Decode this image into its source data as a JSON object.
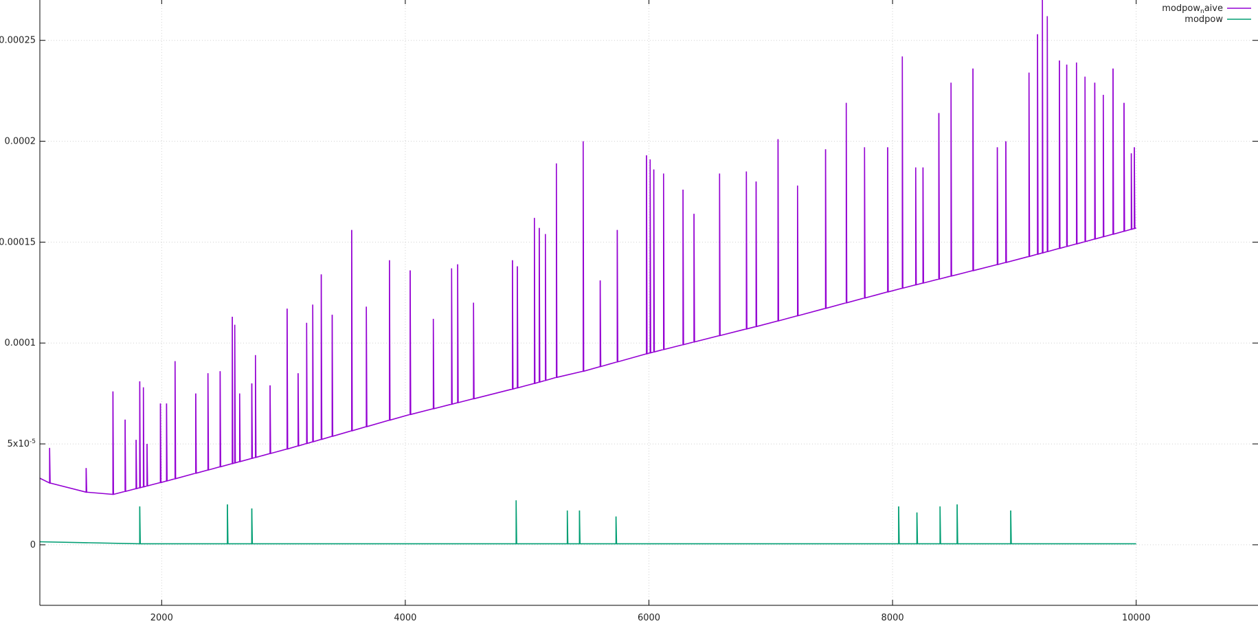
{
  "chart_data": {
    "type": "line",
    "title": "",
    "xlabel": "",
    "ylabel": "",
    "xlim": [
      1000,
      11000
    ],
    "ylim": [
      -3e-05,
      0.00027
    ],
    "grid": true,
    "legend_position": "top-right",
    "x_ticks": [
      2000,
      4000,
      6000,
      8000,
      10000
    ],
    "x_tick_labels": [
      "2000",
      "4000",
      "6000",
      "8000",
      "10000"
    ],
    "y_ticks": [
      0,
      5e-05,
      0.0001,
      0.00015,
      0.0002,
      0.00025
    ],
    "y_tick_labels": [
      "0",
      "5x10-5",
      "0.0001",
      "0.00015",
      "0.0002",
      "0.00025"
    ],
    "series": [
      {
        "name": "modpow_naive",
        "legend_label": "modpownaive",
        "color": "#9400d3",
        "baseline": [
          [
            1000,
            3.3e-05
          ],
          [
            1200,
            2.7e-05
          ],
          [
            1400,
            2.6e-05
          ],
          [
            1600,
            2.5e-05
          ],
          [
            2000,
            3.1e-05
          ],
          [
            3000,
            4.7e-05
          ],
          [
            4000,
            6.4e-05
          ],
          [
            5000,
            7.9e-05
          ],
          [
            5300,
            8.4e-05
          ],
          [
            5400,
            8.5e-05
          ],
          [
            6000,
            9.5e-05
          ],
          [
            7000,
            0.00011
          ],
          [
            8000,
            0.000126
          ],
          [
            9000,
            0.000141
          ],
          [
            10000,
            0.000157
          ]
        ],
        "spikes": [
          [
            1080,
            4.8e-05
          ],
          [
            1380,
            3.8e-05
          ],
          [
            1600,
            7.6e-05
          ],
          [
            1700,
            6.2e-05
          ],
          [
            1790,
            5.2e-05
          ],
          [
            1820,
            8.1e-05
          ],
          [
            1850,
            7.8e-05
          ],
          [
            1880,
            5e-05
          ],
          [
            1990,
            7e-05
          ],
          [
            2040,
            7e-05
          ],
          [
            2110,
            9.1e-05
          ],
          [
            2280,
            7.5e-05
          ],
          [
            2380,
            8.5e-05
          ],
          [
            2480,
            8.6e-05
          ],
          [
            2580,
            0.000113
          ],
          [
            2600,
            0.000109
          ],
          [
            2640,
            7.5e-05
          ],
          [
            2740,
            8e-05
          ],
          [
            2770,
            9.4e-05
          ],
          [
            2890,
            7.9e-05
          ],
          [
            3030,
            0.000117
          ],
          [
            3120,
            8.5e-05
          ],
          [
            3190,
            0.00011
          ],
          [
            3240,
            0.000119
          ],
          [
            3310,
            0.000134
          ],
          [
            3400,
            0.000114
          ],
          [
            3560,
            0.000156
          ],
          [
            3680,
            0.000118
          ],
          [
            3870,
            0.000141
          ],
          [
            4040,
            0.000136
          ],
          [
            4230,
            0.000112
          ],
          [
            4380,
            0.000137
          ],
          [
            4430,
            0.000139
          ],
          [
            4560,
            0.00012
          ],
          [
            4880,
            0.000141
          ],
          [
            4920,
            0.000138
          ],
          [
            5060,
            0.000162
          ],
          [
            5100,
            0.000157
          ],
          [
            5150,
            0.000154
          ],
          [
            5240,
            0.000189
          ],
          [
            5460,
            0.0002
          ],
          [
            5600,
            0.000131
          ],
          [
            5740,
            0.000156
          ],
          [
            5980,
            0.000193
          ],
          [
            6010,
            0.000191
          ],
          [
            6040,
            0.000186
          ],
          [
            6120,
            0.000184
          ],
          [
            6280,
            0.000176
          ],
          [
            6370,
            0.000164
          ],
          [
            6580,
            0.000184
          ],
          [
            6800,
            0.000185
          ],
          [
            6880,
            0.00018
          ],
          [
            7060,
            0.000201
          ],
          [
            7220,
            0.000178
          ],
          [
            7450,
            0.000196
          ],
          [
            7620,
            0.000219
          ],
          [
            7770,
            0.000197
          ],
          [
            7960,
            0.000197
          ],
          [
            8080,
            0.000242
          ],
          [
            8190,
            0.000187
          ],
          [
            8250,
            0.000187
          ],
          [
            8380,
            0.000214
          ],
          [
            8480,
            0.000229
          ],
          [
            8660,
            0.000236
          ],
          [
            8860,
            0.000197
          ],
          [
            8930,
            0.0002
          ],
          [
            9120,
            0.000234
          ],
          [
            9190,
            0.000253
          ],
          [
            9230,
            0.00027
          ],
          [
            9270,
            0.000262
          ],
          [
            9370,
            0.00024
          ],
          [
            9430,
            0.000238
          ],
          [
            9510,
            0.000239
          ],
          [
            9580,
            0.000232
          ],
          [
            9660,
            0.000229
          ],
          [
            9730,
            0.000223
          ],
          [
            9810,
            0.000236
          ],
          [
            9900,
            0.000219
          ],
          [
            9960,
            0.000194
          ],
          [
            9985,
            0.000197
          ]
        ]
      },
      {
        "name": "modpow",
        "legend_label": "modpow",
        "color": "#009e73",
        "baseline": [
          [
            1000,
            1.5e-06
          ],
          [
            1400,
            1.2e-06
          ],
          [
            1500,
            5e-07
          ],
          [
            10000,
            5e-07
          ]
        ],
        "spikes": [
          [
            1820,
            1.9e-05
          ],
          [
            2540,
            2e-05
          ],
          [
            2740,
            1.8e-05
          ],
          [
            4910,
            2.2e-05
          ],
          [
            5330,
            1.7e-05
          ],
          [
            5430,
            1.7e-05
          ],
          [
            5730,
            1.4e-05
          ],
          [
            8050,
            1.9e-05
          ],
          [
            8200,
            1.6e-05
          ],
          [
            8390,
            1.9e-05
          ],
          [
            8530,
            2e-05
          ],
          [
            8970,
            1.7e-05
          ]
        ]
      }
    ]
  }
}
